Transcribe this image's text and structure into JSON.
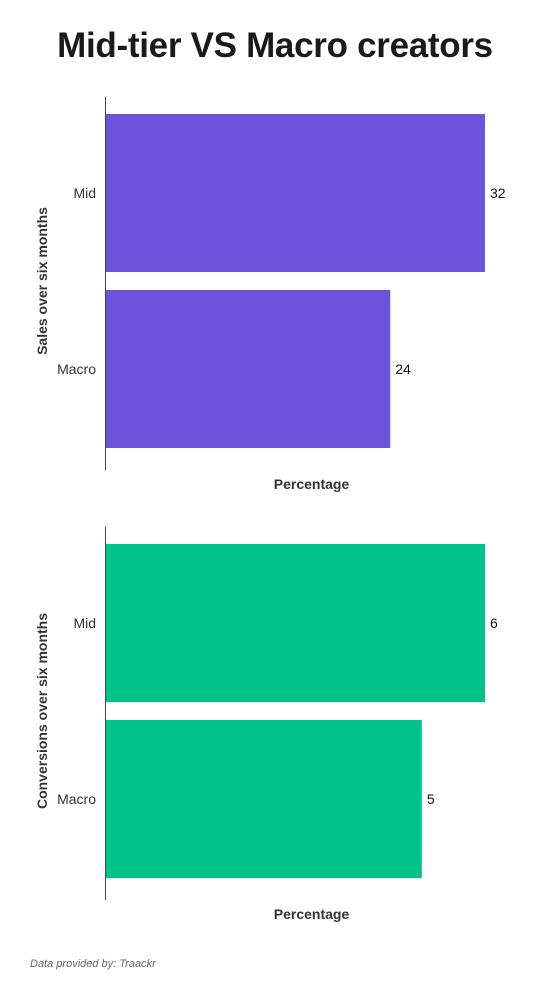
{
  "page": {
    "title": "Mid-tier VS Macro creators",
    "footer": "Data provided by: Traackr"
  },
  "chart_data": [
    {
      "type": "bar",
      "orientation": "horizontal",
      "categories": [
        "Mid",
        "Macro"
      ],
      "values": [
        32,
        24
      ],
      "value_labels": [
        "32",
        "24"
      ],
      "xlabel": "Percentage",
      "ylabel": "Sales over six months",
      "xlim": [
        0,
        32
      ],
      "color": "#6b54db",
      "grid": false
    },
    {
      "type": "bar",
      "orientation": "horizontal",
      "categories": [
        "Mid",
        "Macro"
      ],
      "values": [
        6,
        5
      ],
      "value_labels": [
        "6",
        "5"
      ],
      "xlabel": "Percentage",
      "ylabel": "Conversions over six months",
      "xlim": [
        0,
        6
      ],
      "color": "#00c389",
      "grid": false
    }
  ]
}
